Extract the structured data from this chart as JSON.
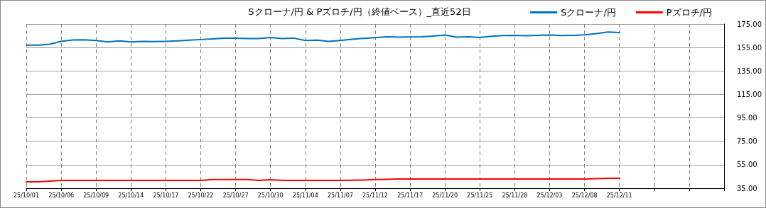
{
  "chart_data": {
    "type": "line",
    "title": "Sクローナ/円 & Pズロチ/円（終値ベース）_直近52日",
    "categories": [
      "25/10/01",
      null,
      null,
      "25/10/06",
      null,
      null,
      "25/10/09",
      null,
      null,
      "25/10/14",
      null,
      null,
      "25/10/17",
      null,
      null,
      "25/10/22",
      null,
      null,
      "25/10/27",
      null,
      null,
      "25/10/30",
      null,
      null,
      "25/11/04",
      null,
      null,
      "25/11/07",
      null,
      null,
      "25/11/12",
      null,
      null,
      "25/11/17",
      null,
      null,
      "25/11/20",
      null,
      null,
      "25/11/25",
      null,
      null,
      "25/11/28",
      null,
      null,
      "25/12/03",
      null,
      null,
      "25/12/08",
      null,
      null,
      "25/12/11",
      null,
      null,
      null,
      null,
      null,
      null,
      null,
      null,
      null
    ],
    "series": [
      {
        "name": "Sクローナ/円",
        "color": "#0070c0",
        "values": [
          157.0,
          157.0,
          157.8,
          160.2,
          161.4,
          161.6,
          161.0,
          159.8,
          160.6,
          159.8,
          160.2,
          160.0,
          160.2,
          160.6,
          161.2,
          161.8,
          162.4,
          163.0,
          163.0,
          162.6,
          162.6,
          163.6,
          162.6,
          163.0,
          161.0,
          161.2,
          160.2,
          161.0,
          162.0,
          162.8,
          163.4,
          164.2,
          163.8,
          164.0,
          164.2,
          164.8,
          165.6,
          163.8,
          164.2,
          163.6,
          164.6,
          165.2,
          165.4,
          165.0,
          165.4,
          165.6,
          165.2,
          165.4,
          165.8,
          166.8,
          168.2,
          167.8,
          null,
          null,
          null,
          null,
          null,
          null,
          null,
          null,
          null
        ]
      },
      {
        "name": "Pズロチ/円",
        "color": "#ff0000",
        "values": [
          40.4,
          40.4,
          41.0,
          41.6,
          41.6,
          41.6,
          41.6,
          41.6,
          41.6,
          41.6,
          41.6,
          41.6,
          41.6,
          41.6,
          41.6,
          41.6,
          42.4,
          42.4,
          42.4,
          42.4,
          41.6,
          42.2,
          41.6,
          41.6,
          41.6,
          41.6,
          41.6,
          41.6,
          41.8,
          42.0,
          42.4,
          42.6,
          42.8,
          42.8,
          42.8,
          42.8,
          42.8,
          42.8,
          42.8,
          42.8,
          42.8,
          42.8,
          42.8,
          42.8,
          42.8,
          42.8,
          42.8,
          42.8,
          42.8,
          43.2,
          43.4,
          43.4,
          null,
          null,
          null,
          null,
          null,
          null,
          null,
          null,
          null
        ]
      }
    ],
    "ylim": [
      35,
      175
    ],
    "yticks": [
      {
        "value": 35,
        "label": "35.00"
      },
      {
        "value": 55,
        "label": "55.00"
      },
      {
        "value": 75,
        "label": "75.00"
      },
      {
        "value": 95,
        "label": "95.00"
      },
      {
        "value": 115,
        "label": "115.00"
      },
      {
        "value": 135,
        "label": "135.00"
      },
      {
        "value": 155,
        "label": "155.00"
      },
      {
        "value": 175,
        "label": "175.00"
      }
    ],
    "grid": true,
    "legend": "top right",
    "marker": "none",
    "line_style": "solid"
  }
}
